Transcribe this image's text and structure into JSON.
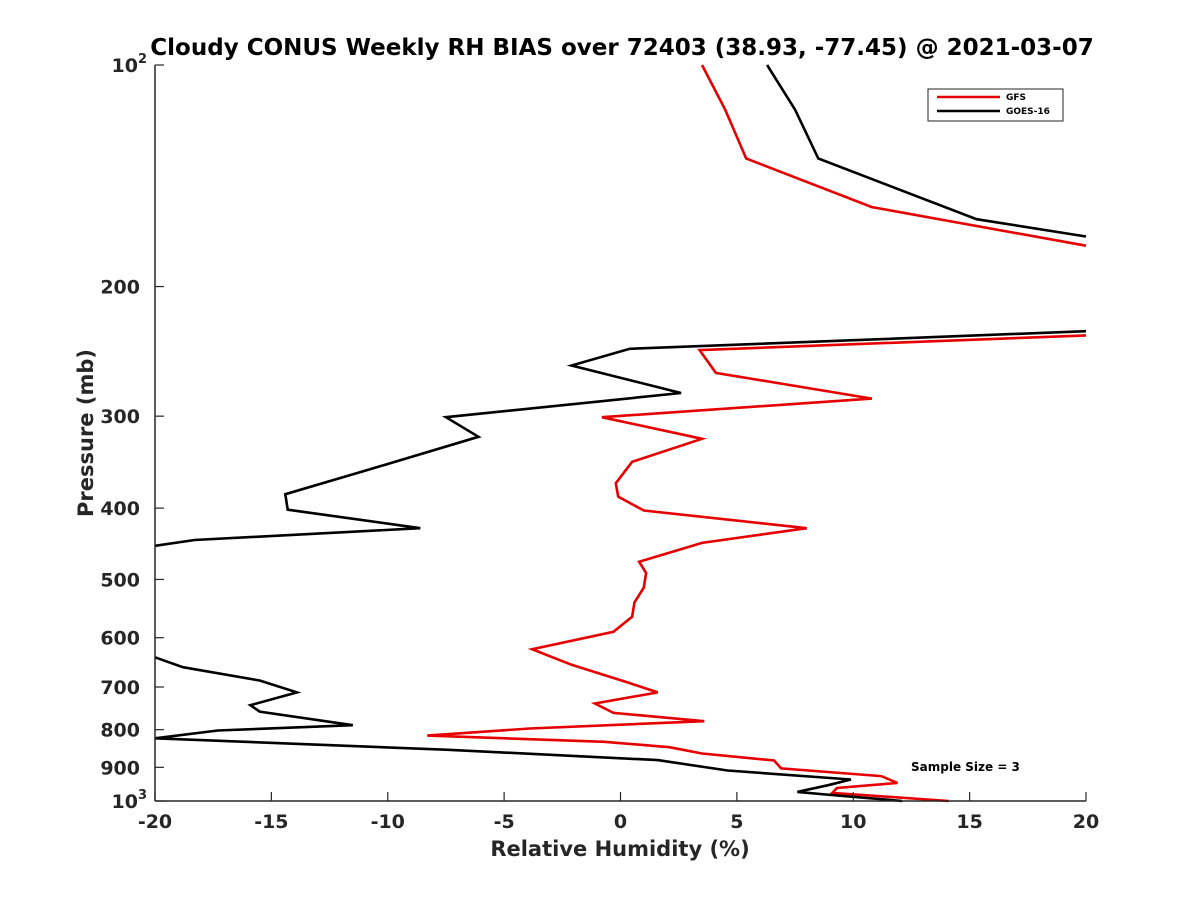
{
  "chart_data": {
    "type": "line",
    "title": "Cloudy CONUS Weekly RH BIAS over 72403 (38.93, -77.45) @ 2021-03-07",
    "xlabel": "Relative Humidity (%)",
    "ylabel": "Pressure (mb)",
    "xlim": [
      -20,
      20
    ],
    "ylim": [
      100,
      1000
    ],
    "y_scale": "log",
    "y_reversed": true,
    "grid": false,
    "legend_position": "top-right",
    "annotation": "Sample Size = 3",
    "x_ticks": [
      "-20",
      "-15",
      "-10",
      "-5",
      "0",
      "5",
      "10",
      "15",
      "20"
    ],
    "y_ticks": [
      {
        "value": 100,
        "base": "10",
        "exp": "2"
      },
      {
        "value": 200,
        "label": "200"
      },
      {
        "value": 300,
        "label": "300"
      },
      {
        "value": 400,
        "label": "400"
      },
      {
        "value": 500,
        "label": "500"
      },
      {
        "value": 600,
        "label": "600"
      },
      {
        "value": 700,
        "label": "700"
      },
      {
        "value": 800,
        "label": "800"
      },
      {
        "value": 900,
        "label": "900"
      },
      {
        "value": 1000,
        "base": "10",
        "exp": "3"
      }
    ],
    "series": [
      {
        "name": "GFS",
        "color": "#e60000",
        "points": [
          [
            3.5,
            100
          ],
          [
            4.5,
            115
          ],
          [
            5.4,
            134
          ],
          [
            10.8,
            156
          ],
          [
            20.0,
            176
          ],
          [
            null,
            176
          ],
          [
            20.0,
            233
          ],
          [
            3.4,
            244
          ],
          [
            4.1,
            262
          ],
          [
            10.8,
            284
          ],
          [
            -0.8,
            301
          ],
          [
            3.5,
            322
          ],
          [
            0.5,
            346
          ],
          [
            -0.2,
            370
          ],
          [
            -0.1,
            386
          ],
          [
            1.0,
            403
          ],
          [
            8.0,
            426
          ],
          [
            3.5,
            446
          ],
          [
            0.8,
            473
          ],
          [
            1.1,
            490
          ],
          [
            1.0,
            513
          ],
          [
            0.6,
            537
          ],
          [
            0.5,
            562
          ],
          [
            -0.3,
            589
          ],
          [
            -3.8,
            622
          ],
          [
            -2.1,
            653
          ],
          [
            0.3,
            690
          ],
          [
            1.6,
            712
          ],
          [
            -1.1,
            737
          ],
          [
            -0.3,
            759
          ],
          [
            3.6,
            779
          ],
          [
            -3.9,
            797
          ],
          [
            -8.3,
            815
          ],
          [
            -0.7,
            831
          ],
          [
            2.1,
            845
          ],
          [
            3.5,
            862
          ],
          [
            6.6,
            881
          ],
          [
            6.9,
            903
          ],
          [
            11.2,
            925
          ],
          [
            11.9,
            945
          ],
          [
            9.3,
            960
          ],
          [
            9.1,
            975
          ],
          [
            14.1,
            1000
          ]
        ]
      },
      {
        "name": "GOES-16",
        "color": "#000000",
        "points": [
          [
            6.3,
            100
          ],
          [
            7.5,
            115
          ],
          [
            8.5,
            134
          ],
          [
            15.3,
            162
          ],
          [
            20.0,
            171
          ],
          [
            null,
            171
          ],
          [
            20.0,
            230
          ],
          [
            0.4,
            243
          ],
          [
            -2.1,
            256
          ],
          [
            2.6,
            279
          ],
          [
            -7.5,
            301
          ],
          [
            -6.1,
            320
          ],
          [
            -11.0,
            356
          ],
          [
            -14.4,
            383
          ],
          [
            -14.3,
            402
          ],
          [
            -8.6,
            426
          ],
          [
            -18.3,
            442
          ],
          [
            -20.0,
            450
          ],
          [
            null,
            450
          ],
          [
            -20.0,
            638
          ],
          [
            -18.8,
            658
          ],
          [
            -15.5,
            686
          ],
          [
            -13.9,
            712
          ],
          [
            -15.9,
            741
          ],
          [
            -15.5,
            756
          ],
          [
            -11.5,
            789
          ],
          [
            -17.3,
            802
          ],
          [
            -20.0,
            822
          ],
          [
            -7.4,
            852
          ],
          [
            1.6,
            880
          ],
          [
            4.6,
            909
          ],
          [
            9.9,
            935
          ],
          [
            8.9,
            952
          ],
          [
            7.6,
            972
          ],
          [
            9.3,
            983
          ],
          [
            12.1,
            1000
          ]
        ]
      }
    ]
  }
}
